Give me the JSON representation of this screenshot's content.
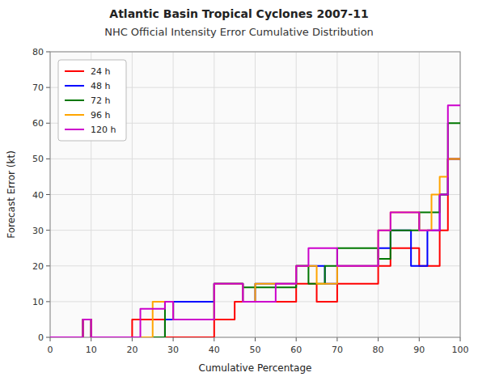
{
  "chart_data": {
    "type": "line",
    "title": "Atlantic Basin Tropical Cyclones 2007-11",
    "subtitle": "NHC Official Intensity Error Cumulative Distribution",
    "x_label": "Cumulative Percentage",
    "y_label": "Forecast Error (kt)",
    "xlim": [
      0,
      100
    ],
    "ylim": [
      0,
      80
    ],
    "xticks": [
      0,
      10,
      20,
      30,
      40,
      50,
      60,
      70,
      80,
      90,
      100
    ],
    "yticks": [
      0,
      10,
      20,
      30,
      40,
      50,
      60,
      70,
      80
    ],
    "grid": true,
    "legend": "upper left",
    "series": [
      {
        "name": "24 h",
        "color": "#ff0000",
        "x": [
          0,
          8,
          8,
          10,
          10,
          20,
          20,
          28,
          28,
          40,
          40,
          45,
          45,
          60,
          60,
          65,
          65,
          70,
          70,
          80,
          80,
          83,
          83,
          90,
          90,
          95,
          95,
          97,
          97,
          100
        ],
        "values": [
          0,
          0,
          5,
          5,
          0,
          0,
          5,
          5,
          0,
          0,
          5,
          5,
          10,
          10,
          15,
          15,
          10,
          10,
          15,
          15,
          20,
          20,
          25,
          25,
          20,
          20,
          30,
          30,
          50,
          50
        ]
      },
      {
        "name": "48 h",
        "color": "#0000ff",
        "x": [
          0,
          8,
          8,
          10,
          10,
          28,
          28,
          30,
          30,
          40,
          40,
          47,
          47,
          50,
          50,
          60,
          60,
          67,
          67,
          70,
          70,
          80,
          80,
          83,
          83,
          88,
          88,
          92,
          92,
          95,
          95,
          97,
          97,
          100
        ],
        "values": [
          0,
          0,
          5,
          5,
          0,
          0,
          5,
          5,
          10,
          10,
          15,
          15,
          10,
          10,
          15,
          15,
          20,
          20,
          15,
          15,
          20,
          20,
          25,
          25,
          30,
          30,
          20,
          20,
          30,
          30,
          40,
          40,
          50,
          50
        ]
      },
      {
        "name": "72 h",
        "color": "#007700",
        "x": [
          0,
          8,
          8,
          10,
          10,
          28,
          28,
          30,
          30,
          40,
          40,
          47,
          47,
          60,
          60,
          63,
          63,
          67,
          67,
          70,
          70,
          80,
          80,
          83,
          83,
          90,
          90,
          95,
          95,
          97,
          97,
          100
        ],
        "values": [
          0,
          0,
          5,
          5,
          0,
          0,
          10,
          10,
          5,
          5,
          15,
          15,
          14,
          14,
          20,
          20,
          15,
          15,
          20,
          20,
          25,
          25,
          22,
          22,
          30,
          30,
          35,
          35,
          40,
          40,
          60,
          60
        ]
      },
      {
        "name": "96 h",
        "color": "#ffa500",
        "x": [
          0,
          8,
          8,
          10,
          10,
          25,
          25,
          30,
          30,
          40,
          40,
          47,
          47,
          50,
          50,
          60,
          60,
          65,
          65,
          70,
          70,
          80,
          80,
          83,
          83,
          90,
          90,
          93,
          93,
          95,
          95,
          97,
          97,
          100
        ],
        "values": [
          0,
          0,
          5,
          5,
          0,
          0,
          10,
          10,
          5,
          5,
          15,
          15,
          10,
          10,
          15,
          15,
          20,
          20,
          15,
          15,
          20,
          20,
          30,
          30,
          35,
          35,
          30,
          30,
          40,
          40,
          45,
          45,
          50,
          50
        ]
      },
      {
        "name": "120 h",
        "color": "#cc00cc",
        "x": [
          0,
          8,
          8,
          10,
          10,
          22,
          22,
          28,
          28,
          30,
          30,
          40,
          40,
          47,
          47,
          55,
          55,
          60,
          60,
          63,
          63,
          70,
          70,
          80,
          80,
          83,
          83,
          90,
          90,
          95,
          95,
          97,
          97,
          100
        ],
        "values": [
          0,
          0,
          5,
          5,
          0,
          0,
          8,
          8,
          10,
          10,
          5,
          5,
          15,
          15,
          10,
          10,
          15,
          15,
          20,
          20,
          25,
          25,
          20,
          20,
          30,
          30,
          35,
          35,
          30,
          30,
          40,
          40,
          65,
          65
        ]
      }
    ]
  }
}
